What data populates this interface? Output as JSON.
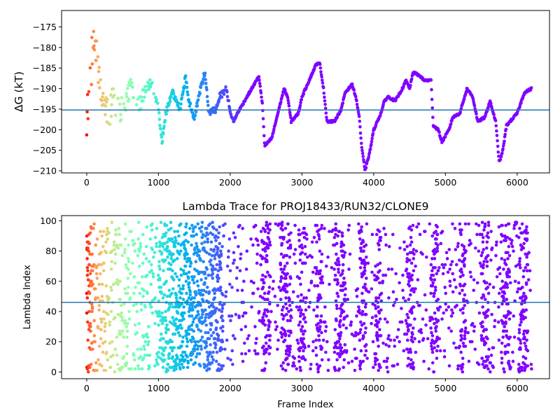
{
  "chart_data": [
    {
      "type": "scatter",
      "title": "",
      "ylabel": "ΔG (kT)",
      "xlabel": "",
      "xlim": [
        -350,
        6450
      ],
      "ylim": [
        -210.5,
        -171.0
      ],
      "xticks": [
        0,
        1000,
        2000,
        3000,
        4000,
        5000,
        6000
      ],
      "yticks": [
        -210,
        -205,
        -200,
        -195,
        -190,
        -185,
        -180,
        -175
      ],
      "hline": -195.2,
      "hline_color": "#1f77b4",
      "colormap": "rainbow (reversed: red at frame 0, violet at later frames)",
      "x_max": 6200,
      "trace_keypoints": [
        [
          0,
          -196
        ],
        [
          100,
          -178
        ],
        [
          200,
          -190
        ],
        [
          300,
          -195
        ],
        [
          400,
          -193
        ],
        [
          500,
          -196
        ],
        [
          600,
          -189
        ],
        [
          700,
          -195
        ],
        [
          800,
          -191
        ],
        [
          900,
          -188
        ],
        [
          1000,
          -195
        ],
        [
          1050,
          -203
        ],
        [
          1100,
          -196
        ],
        [
          1200,
          -191
        ],
        [
          1300,
          -195
        ],
        [
          1380,
          -187
        ],
        [
          1420,
          -193
        ],
        [
          1500,
          -197
        ],
        [
          1550,
          -193
        ],
        [
          1600,
          -189
        ],
        [
          1650,
          -186
        ],
        [
          1700,
          -196
        ],
        [
          1800,
          -195
        ],
        [
          1850,
          -192
        ],
        [
          1950,
          -190
        ],
        [
          2000,
          -196
        ],
        [
          2050,
          -198
        ],
        [
          2100,
          -196
        ],
        [
          2200,
          -193
        ],
        [
          2300,
          -190
        ],
        [
          2400,
          -187
        ],
        [
          2450,
          -194
        ],
        [
          2480,
          -204
        ],
        [
          2580,
          -202
        ],
        [
          2650,
          -197
        ],
        [
          2750,
          -190
        ],
        [
          2800,
          -192
        ],
        [
          2850,
          -198
        ],
        [
          2950,
          -196
        ],
        [
          3000,
          -192
        ],
        [
          3100,
          -188
        ],
        [
          3200,
          -184
        ],
        [
          3250,
          -184
        ],
        [
          3300,
          -190
        ],
        [
          3350,
          -198
        ],
        [
          3450,
          -198
        ],
        [
          3550,
          -195
        ],
        [
          3600,
          -191
        ],
        [
          3700,
          -189
        ],
        [
          3750,
          -192
        ],
        [
          3800,
          -197
        ],
        [
          3830,
          -204
        ],
        [
          3880,
          -210
        ],
        [
          3950,
          -205
        ],
        [
          4000,
          -200
        ],
        [
          4100,
          -196
        ],
        [
          4150,
          -193
        ],
        [
          4200,
          -192
        ],
        [
          4300,
          -193
        ],
        [
          4400,
          -190
        ],
        [
          4450,
          -188
        ],
        [
          4500,
          -190
        ],
        [
          4550,
          -186
        ],
        [
          4650,
          -187
        ],
        [
          4700,
          -188
        ],
        [
          4800,
          -188
        ],
        [
          4830,
          -199
        ],
        [
          4900,
          -200
        ],
        [
          4950,
          -203
        ],
        [
          5050,
          -200
        ],
        [
          5100,
          -197
        ],
        [
          5200,
          -196
        ],
        [
          5300,
          -190
        ],
        [
          5380,
          -192
        ],
        [
          5450,
          -198
        ],
        [
          5550,
          -197
        ],
        [
          5620,
          -193
        ],
        [
          5700,
          -198
        ],
        [
          5750,
          -208
        ],
        [
          5800,
          -205
        ],
        [
          5850,
          -199
        ],
        [
          5900,
          -198
        ],
        [
          6000,
          -196
        ],
        [
          6100,
          -191
        ],
        [
          6200,
          -190
        ]
      ]
    },
    {
      "type": "scatter",
      "title": "Lambda Trace for PROJ18433/RUN32/CLONE9",
      "ylabel": "Lambda Index",
      "xlabel": "Frame Index",
      "xlim": [
        -350,
        6450
      ],
      "ylim": [
        -4.5,
        103.5
      ],
      "xticks": [
        0,
        1000,
        2000,
        3000,
        4000,
        5000,
        6000
      ],
      "yticks": [
        0,
        20,
        40,
        60,
        80,
        100
      ],
      "hline": 46,
      "hline_color": "#1f77b4",
      "colormap": "rainbow (reversed: red at frame 0, violet at later frames)",
      "x_max": 6200,
      "lambda_range": [
        0,
        99
      ],
      "dense_columns": [
        [
          0,
          80
        ],
        [
          1000,
          1900
        ],
        [
          2440,
          2560
        ],
        [
          2700,
          2850
        ],
        [
          2950,
          3050
        ],
        [
          3200,
          3280
        ],
        [
          3450,
          3600
        ],
        [
          3800,
          3900
        ],
        [
          4020,
          4100
        ],
        [
          4460,
          4560
        ],
        [
          4800,
          4900
        ],
        [
          5200,
          5280
        ],
        [
          5500,
          5600
        ],
        [
          5780,
          5900
        ],
        [
          6020,
          6150
        ]
      ]
    }
  ]
}
